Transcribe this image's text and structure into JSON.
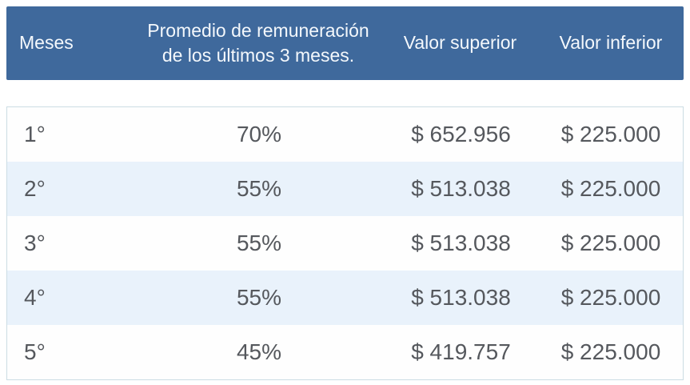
{
  "colors": {
    "header_bg": "#3f699c",
    "header_text": "#f4f8fc",
    "row_bg": "#fefefe",
    "row_alt_bg": "#e9f2fb",
    "body_text": "#55585d",
    "table_border": "#ccdde4"
  },
  "header": {
    "meses": "Meses",
    "promedio_line1": "Promedio de remuneración",
    "promedio_line2": "de los  últimos 3 meses.",
    "valor_superior": "Valor superior",
    "valor_inferior": "Valor inferior"
  },
  "chart_data": {
    "type": "table",
    "title": "",
    "columns": [
      "Meses",
      "Promedio de remuneración de los  últimos 3 meses.",
      "Valor superior",
      "Valor inferior"
    ],
    "rows": [
      [
        "1°",
        "70%",
        "$ 652.956",
        "$ 225.000"
      ],
      [
        "2°",
        "55%",
        "$ 513.038",
        "$ 225.000"
      ],
      [
        "3°",
        "55%",
        "$ 513.038",
        "$ 225.000"
      ],
      [
        "4°",
        "55%",
        "$ 513.038",
        "$ 225.000"
      ],
      [
        "5°",
        "45%",
        "$ 419.757",
        "$ 225.000"
      ]
    ]
  }
}
